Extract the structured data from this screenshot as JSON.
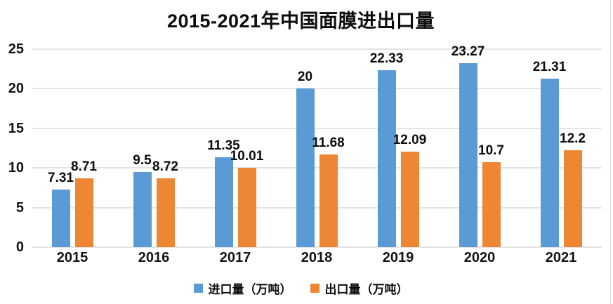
{
  "chart_data": {
    "type": "bar",
    "title": "2015-2021年中国面膜进出口量",
    "categories": [
      "2015",
      "2016",
      "2017",
      "2018",
      "2019",
      "2020",
      "2021"
    ],
    "series": [
      {
        "name": "进口量（万吨）",
        "color": "#5B9BD5",
        "values": [
          7.31,
          9.5,
          11.35,
          20,
          22.33,
          23.27,
          21.31
        ],
        "labels": [
          "7.31",
          "9.5",
          "11.35",
          "20",
          "22.33",
          "23.27",
          "21.31"
        ]
      },
      {
        "name": "出口量（万吨）",
        "color": "#ED8733",
        "values": [
          8.71,
          8.72,
          10.01,
          11.68,
          12.09,
          10.7,
          12.2
        ],
        "labels": [
          "8.71",
          "8.72",
          "10.01",
          "11.68",
          "12.09",
          "10.7",
          "12.2"
        ]
      }
    ],
    "xlabel": "",
    "ylabel": "",
    "ylim": [
      0,
      25
    ],
    "yticks": [
      0,
      5,
      10,
      15,
      20,
      25
    ],
    "grid": true,
    "legend_position": "bottom"
  },
  "colors": {
    "import_blue": "#5B9BD5",
    "export_orange": "#ED8733",
    "gridline": "#e3e3e3",
    "text": "#0d0d0d"
  }
}
